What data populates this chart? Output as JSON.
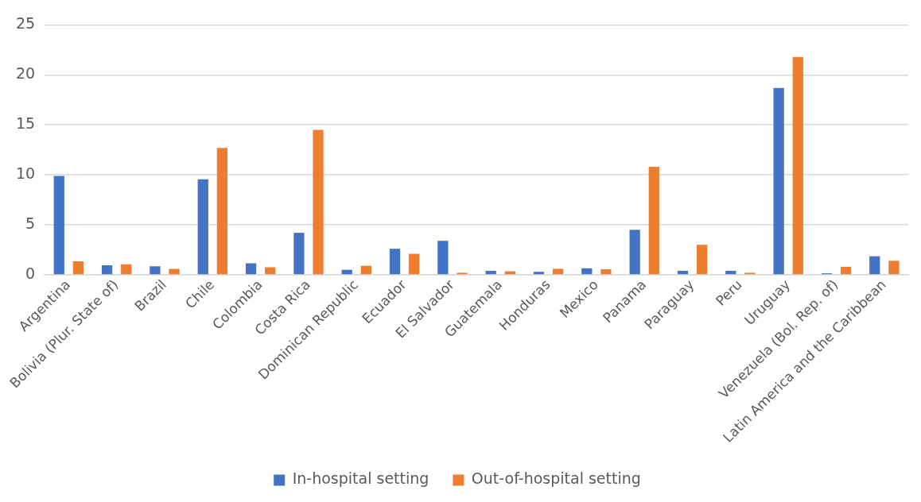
{
  "chart_data": {
    "type": "bar",
    "categories": [
      "Argentina",
      "Bolivia (Plur. State of)",
      "Brazil",
      "Chile",
      "Colombia",
      "Costa Rica",
      "Dominican Republic",
      "Ecuador",
      "El Salvador",
      "Guatemala",
      "Honduras",
      "Mexico",
      "Panama",
      "Paraguay",
      "Peru",
      "Uruguay",
      "Venezuela (Bol. Rep. of)",
      "Latin America and the Caribbean"
    ],
    "series": [
      {
        "name": "In-hospital setting",
        "color": "#4472c4",
        "values": [
          9.9,
          0.95,
          0.85,
          9.55,
          1.15,
          4.2,
          0.5,
          2.6,
          3.4,
          0.4,
          0.3,
          0.65,
          4.5,
          0.4,
          0.4,
          18.7,
          0.15,
          1.85
        ]
      },
      {
        "name": "Out-of-hospital setting",
        "color": "#ed7d31",
        "values": [
          1.35,
          1.05,
          0.6,
          12.7,
          0.75,
          14.5,
          0.9,
          2.1,
          0.2,
          0.35,
          0.6,
          0.55,
          10.8,
          3.0,
          0.2,
          21.8,
          0.8,
          1.4
        ]
      }
    ],
    "ylim": [
      0,
      25
    ],
    "yticks": [
      0,
      5,
      10,
      15,
      20,
      25
    ],
    "grid": "y",
    "legend": "bottom"
  }
}
